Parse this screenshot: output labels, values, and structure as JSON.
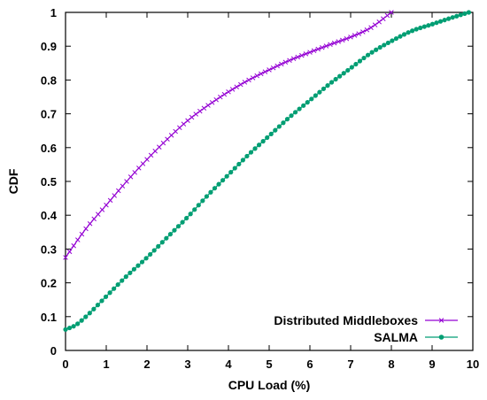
{
  "chart_data": {
    "type": "line",
    "title": "",
    "xlabel": "CPU Load (%)",
    "ylabel": "CDF",
    "xlim": [
      0,
      10
    ],
    "ylim": [
      0,
      1
    ],
    "x_ticks": [
      "0",
      "1",
      "2",
      "3",
      "4",
      "5",
      "6",
      "7",
      "8",
      "9",
      "10"
    ],
    "y_ticks": [
      "0",
      "0.1",
      "0.2",
      "0.3",
      "0.4",
      "0.5",
      "0.6",
      "0.7",
      "0.8",
      "0.9",
      "1"
    ],
    "grid": false,
    "legend_position": "bottom-right",
    "series": [
      {
        "name": "Distributed Middleboxes",
        "color": "#9400d3",
        "marker": "x",
        "x": [
          0,
          0.5,
          1,
          1.5,
          2,
          2.5,
          3,
          3.5,
          4,
          4.5,
          5,
          5.5,
          6,
          6.5,
          7,
          7.5,
          8
        ],
        "y": [
          0.275,
          0.36,
          0.43,
          0.5,
          0.565,
          0.625,
          0.68,
          0.725,
          0.765,
          0.8,
          0.83,
          0.858,
          0.882,
          0.905,
          0.927,
          0.955,
          1.0
        ]
      },
      {
        "name": "SALMA",
        "color": "#009e73",
        "marker": "circle",
        "x": [
          0,
          0.25,
          0.5,
          1,
          1.5,
          2,
          2.5,
          3,
          3.5,
          4,
          4.5,
          5,
          5.5,
          6,
          6.5,
          7,
          7.5,
          8,
          8.5,
          9,
          9.5,
          9.9
        ],
        "y": [
          0.062,
          0.075,
          0.1,
          0.16,
          0.22,
          0.275,
          0.335,
          0.395,
          0.46,
          0.52,
          0.58,
          0.635,
          0.69,
          0.74,
          0.79,
          0.835,
          0.88,
          0.915,
          0.945,
          0.965,
          0.985,
          1.0
        ]
      }
    ]
  }
}
